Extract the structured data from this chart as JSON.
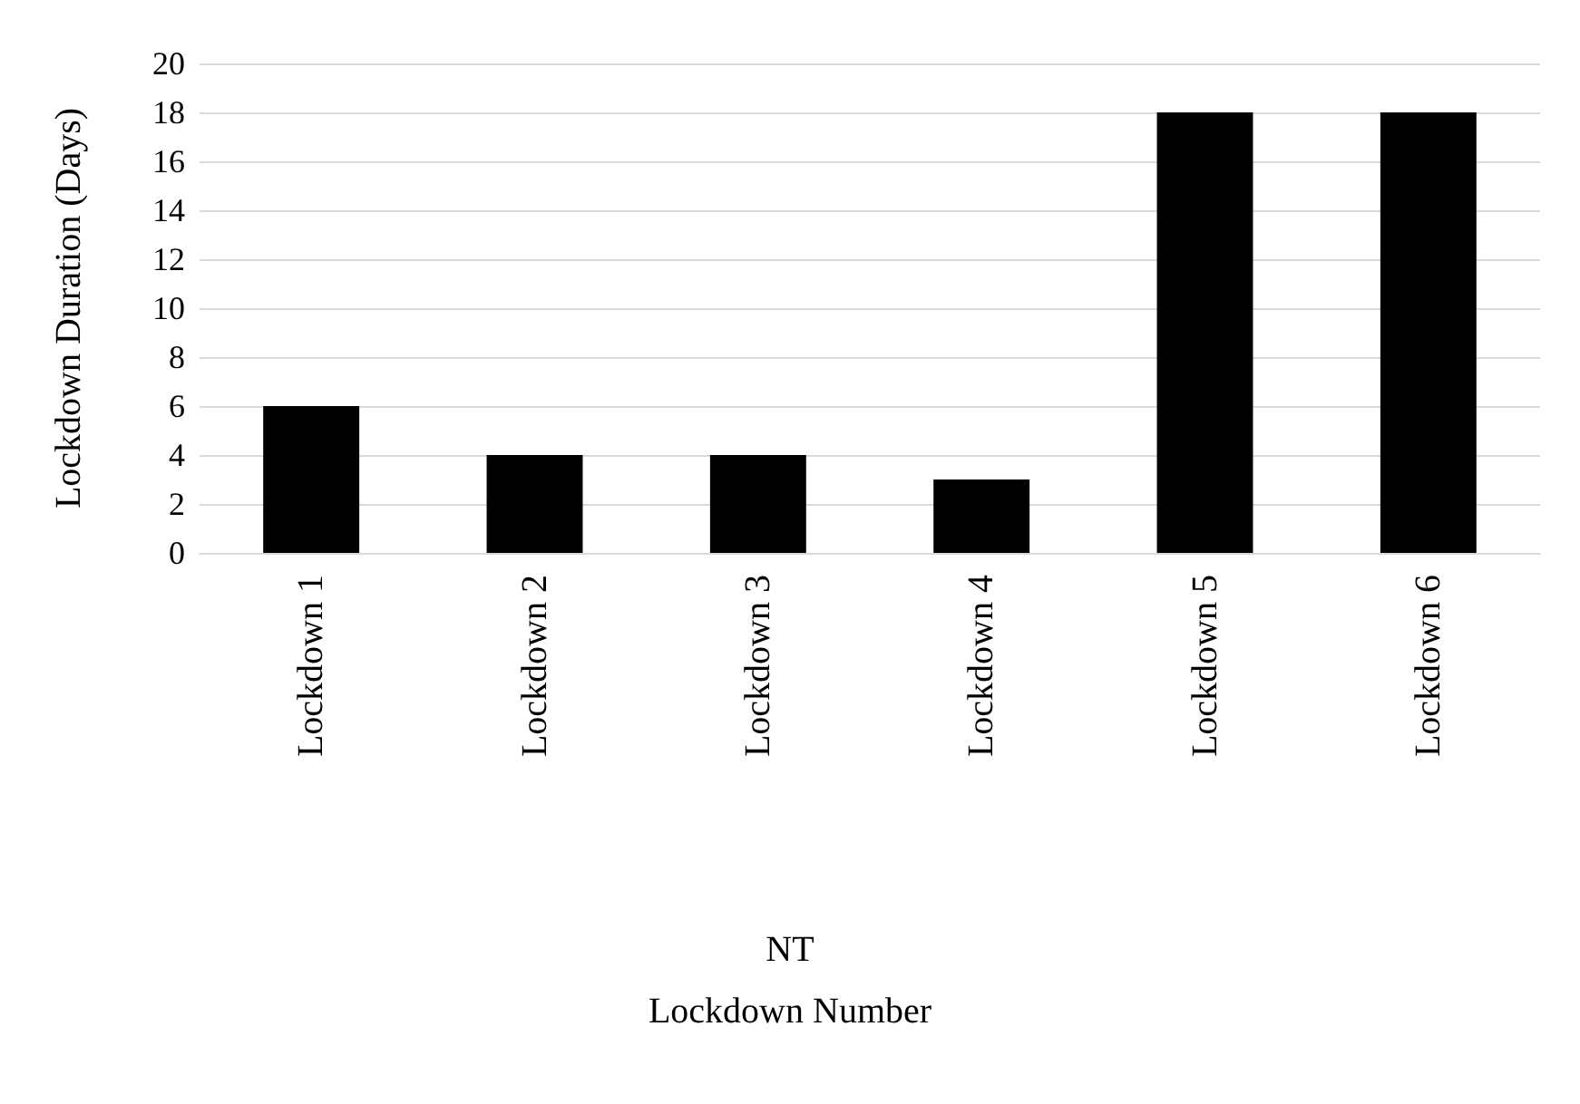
{
  "chart_data": {
    "type": "bar",
    "categories": [
      "Lockdown 1",
      "Lockdown 2",
      "Lockdown 3",
      "Lockdown 4",
      "Lockdown 5",
      "Lockdown 6"
    ],
    "values": [
      6,
      4,
      4,
      3,
      18,
      18
    ],
    "color": "#000000",
    "ylim": [
      0,
      20
    ],
    "yticks": [
      0,
      2,
      4,
      6,
      8,
      10,
      12,
      14,
      16,
      18,
      20
    ],
    "grid": "y",
    "ylabel": "Lockdown Duration (Days)",
    "annotations": [
      "NT",
      "Lockdown Number"
    ]
  }
}
